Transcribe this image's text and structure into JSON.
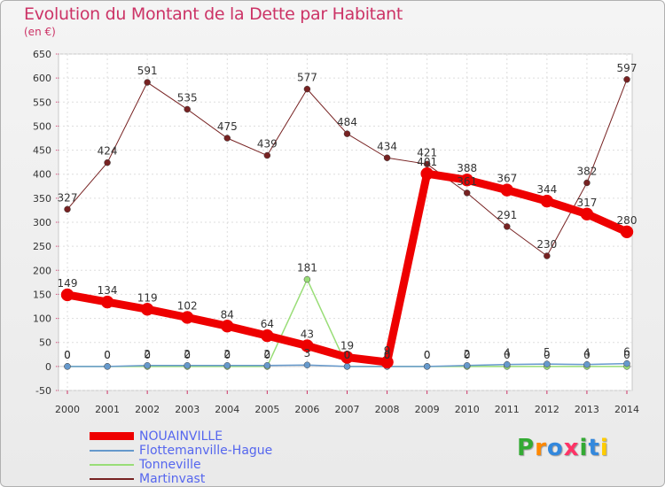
{
  "title": "Evolution du Montant de la Dette par Habitant",
  "subtitle": "(en €)",
  "logo": {
    "text": "Proxiti",
    "colors": [
      "#33aa33",
      "#ff8800",
      "#3388dd",
      "#ff3366",
      "#33aa33",
      "#3388dd",
      "#ffcc00"
    ]
  },
  "chart_data": {
    "type": "line",
    "title": "Evolution du Montant de la Dette par Habitant",
    "ylabel": "(en €)",
    "xlabel": "",
    "ylim": [
      -50,
      650
    ],
    "yticks": [
      -50,
      0,
      50,
      100,
      150,
      200,
      250,
      300,
      350,
      400,
      450,
      500,
      550,
      600,
      650
    ],
    "categories": [
      "2000",
      "2001",
      "2002",
      "2003",
      "2004",
      "2005",
      "2006",
      "2007",
      "2008",
      "2009",
      "2010",
      "2011",
      "2012",
      "2013",
      "2014"
    ],
    "grid": true,
    "series": [
      {
        "name": "NOUAINVILLE",
        "color": "#ee0000",
        "width": 9,
        "values": [
          149,
          134,
          119,
          102,
          84,
          64,
          43,
          19,
          9,
          401,
          388,
          367,
          344,
          317,
          280
        ],
        "labels": [
          "149",
          "134",
          "119",
          "102",
          "84",
          "64",
          "43",
          "19",
          "9",
          "401",
          "388",
          "367",
          "344",
          "317",
          "280"
        ]
      },
      {
        "name": "Flottemanville-Hague",
        "color": "#6699cc",
        "width": 1.5,
        "values": [
          0,
          0,
          2,
          2,
          2,
          2,
          3,
          0,
          0,
          0,
          2,
          4,
          5,
          4,
          6
        ],
        "labels": [
          "0",
          "0",
          "2",
          "2",
          "2",
          "2",
          "3",
          "0",
          "0",
          "0",
          "2",
          "4",
          "5",
          "4",
          "6"
        ]
      },
      {
        "name": "Tonneville",
        "color": "#99dd77",
        "width": 1.5,
        "values": [
          0,
          0,
          0,
          0,
          0,
          0,
          181,
          0,
          0,
          0,
          0,
          0,
          0,
          0,
          0
        ],
        "labels": [
          "0",
          "0",
          "0",
          "0",
          "0",
          "0",
          "181",
          "0",
          "0",
          "0",
          "0",
          "0",
          "0",
          "0",
          "0"
        ]
      },
      {
        "name": "Martinvast",
        "color": "#772222",
        "width": 1,
        "values": [
          327,
          424,
          591,
          535,
          475,
          439,
          577,
          484,
          434,
          421,
          361,
          291,
          230,
          382,
          597
        ],
        "labels": [
          "327",
          "424",
          "591",
          "535",
          "475",
          "439",
          "577",
          "484",
          "434",
          "421",
          "361",
          "291",
          "230",
          "382",
          "597"
        ]
      }
    ]
  }
}
